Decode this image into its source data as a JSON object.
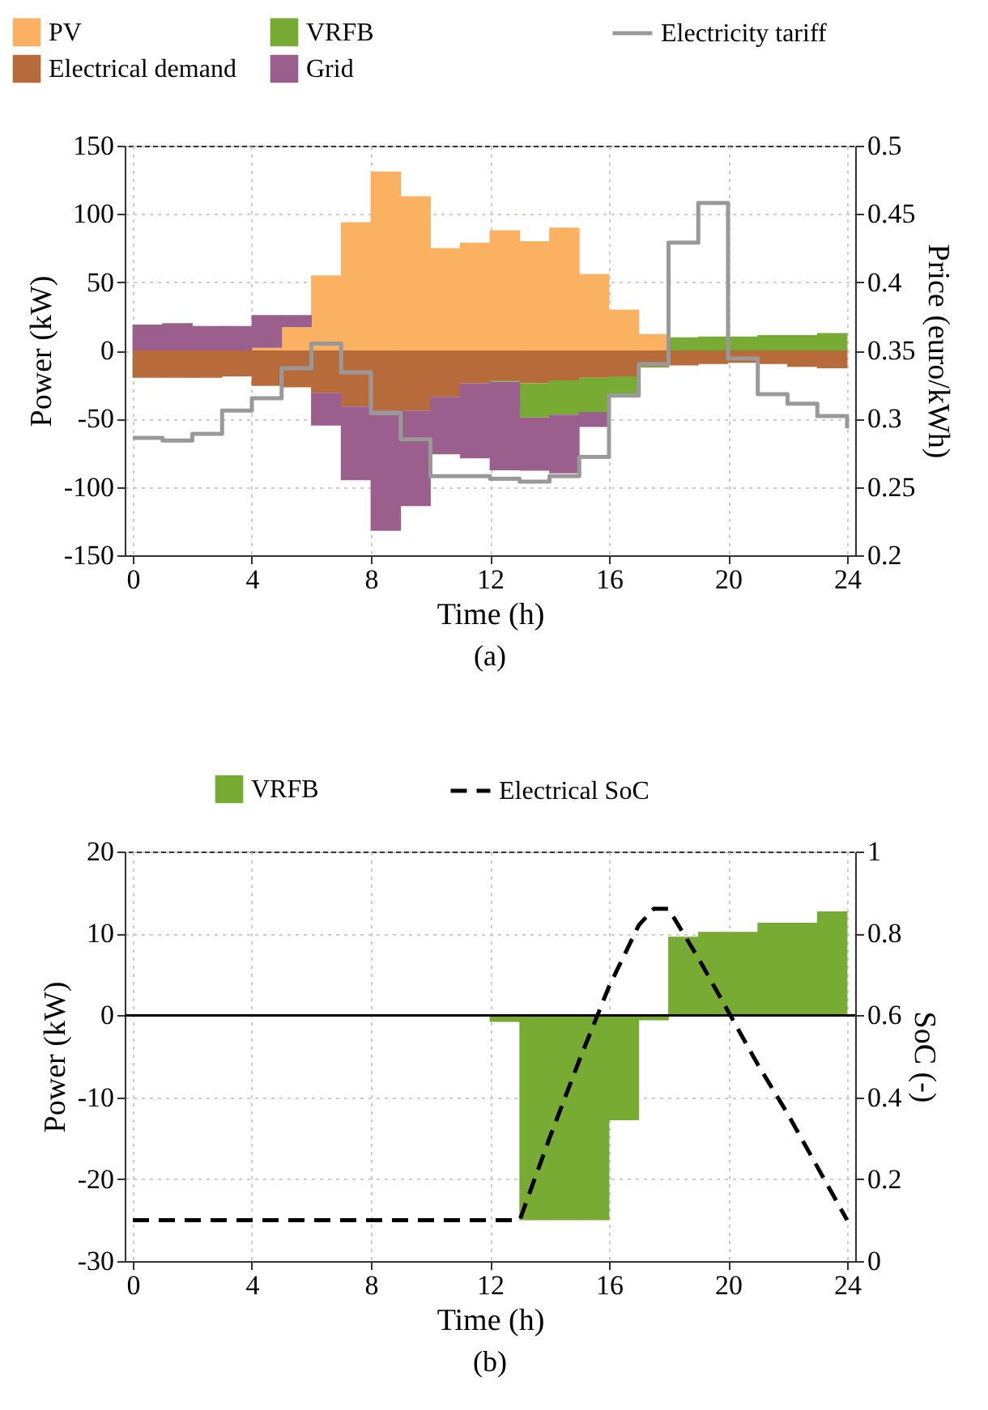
{
  "chart_data": [
    {
      "type": "bar",
      "stacked": true,
      "x": [
        0.5,
        1.5,
        2.5,
        3.5,
        4.5,
        5.5,
        6.5,
        7.5,
        8.5,
        9.5,
        10.5,
        11.5,
        12.5,
        13.5,
        14.5,
        15.5,
        16.5,
        17.5,
        18.5,
        19.5,
        20.5,
        21.5,
        22.5,
        23.5
      ],
      "series": [
        {
          "name": "PV",
          "color": "#fbb162",
          "values": [
            0,
            0,
            0,
            0,
            2,
            17,
            55,
            94,
            131,
            113,
            75,
            79,
            88,
            80,
            90,
            56,
            30,
            12,
            0,
            0,
            0,
            0,
            0,
            0
          ]
        },
        {
          "name": "Electrical demand",
          "color": "#b86b3a",
          "values": [
            -20,
            -20,
            -20,
            -19,
            -26,
            -27,
            -31,
            -41,
            -44,
            -44,
            -34,
            -24,
            -22,
            -24,
            -22,
            -20,
            -19,
            -12,
            -11,
            -10,
            -9,
            -10,
            -12,
            -13
          ]
        },
        {
          "name": "VRFB",
          "color": "#78ab33",
          "values": [
            0,
            0,
            0,
            0,
            0,
            0,
            0,
            0,
            0,
            0,
            0,
            0,
            -0.8,
            -25,
            -25,
            -25,
            -12.8,
            -0.6,
            9.6,
            10.2,
            10.2,
            11.3,
            11.3,
            12.7
          ]
        },
        {
          "name": "Grid",
          "color": "#9b5f8d",
          "values": [
            19,
            20,
            18,
            18,
            24,
            9,
            -24,
            -54,
            -88,
            -70,
            -42,
            -55,
            -65,
            -39,
            -43,
            -11,
            0,
            0,
            0,
            0,
            0,
            0,
            0,
            0
          ]
        },
        {
          "name": "Electricity tariff",
          "type": "step",
          "axis": "y2",
          "color": "#999999",
          "x": [
            0,
            1,
            2,
            3,
            4,
            5,
            6,
            7,
            8,
            9,
            10,
            11,
            12,
            13,
            14,
            15,
            16,
            17,
            18,
            19,
            20,
            21,
            22,
            23,
            24
          ],
          "values": [
            0.286,
            0.284,
            0.289,
            0.306,
            0.315,
            0.337,
            0.355,
            0.334,
            0.304,
            0.285,
            0.258,
            0.258,
            0.256,
            0.254,
            0.258,
            0.272,
            0.317,
            0.34,
            0.429,
            0.458,
            0.344,
            0.318,
            0.311,
            0.302,
            0.293
          ]
        }
      ],
      "xlim": [
        0,
        24
      ],
      "xticks": [
        0,
        4,
        8,
        12,
        16,
        20,
        24
      ],
      "ylim": [
        -150,
        150
      ],
      "yticks": [
        -150,
        -100,
        -50,
        0,
        50,
        100,
        150
      ],
      "y2lim": [
        0.2,
        0.5
      ],
      "y2ticks": [
        {
          "value": 0.2,
          "label": "0.2"
        },
        0.25,
        {
          "value": 0.3,
          "label": "0.3"
        },
        0.35,
        {
          "value": 0.4,
          "label": "0.4"
        },
        0.45,
        {
          "value": 0.5,
          "label": "0.5"
        }
      ],
      "xlabel": "Time (h)",
      "ylabel": "Power (kW)",
      "y2label": "Price (euro/kWh)",
      "legend": "top",
      "grid": true,
      "annotations": [
        "(a)"
      ]
    },
    {
      "type": "bar",
      "stacked": true,
      "x": [
        0.5,
        1.5,
        2.5,
        3.5,
        4.5,
        5.5,
        6.5,
        7.5,
        8.5,
        9.5,
        10.5,
        11.5,
        12.5,
        13.5,
        14.5,
        15.5,
        16.5,
        17.5,
        18.5,
        19.5,
        20.5,
        21.5,
        22.5,
        23.5
      ],
      "series": [
        {
          "name": "VRFB",
          "color": "#78ab33",
          "values": [
            0,
            0,
            0,
            0,
            0,
            0,
            0,
            0,
            0,
            0,
            0,
            0,
            -0.8,
            -25,
            -25,
            -25,
            -12.8,
            -0.6,
            9.6,
            10.2,
            10.2,
            11.3,
            11.3,
            12.7
          ]
        },
        {
          "name": "Electrical SoC",
          "type": "line",
          "axis": "y2",
          "color": "#000000",
          "line_style": "dashed",
          "x": [
            0,
            13,
            14,
            15,
            16,
            17,
            17.5,
            18,
            19,
            20,
            21,
            22,
            23,
            24
          ],
          "values": [
            0.1,
            0.1,
            0.3,
            0.49,
            0.67,
            0.82,
            0.86,
            0.86,
            0.74,
            0.61,
            0.48,
            0.36,
            0.23,
            0.1
          ]
        }
      ],
      "xlim": [
        0,
        24
      ],
      "xticks": [
        0,
        4,
        8,
        12,
        16,
        20,
        24
      ],
      "ylim": [
        -30,
        20
      ],
      "yticks": [
        -30,
        -20,
        -10,
        0,
        10,
        20
      ],
      "y2lim": [
        0,
        1
      ],
      "y2ticks": [
        {
          "value": 0,
          "label": "0"
        },
        0.2,
        0.4,
        0.6,
        0.8,
        {
          "value": 1,
          "label": "1"
        }
      ],
      "ref_lines": [
        {
          "axis": "y",
          "value": 0,
          "color": "#000000"
        }
      ],
      "xlabel": "Time (h)",
      "ylabel": "Power (kW)",
      "y2label": "SoC (-)",
      "legend": "top",
      "grid": true,
      "annotations": [
        "(b)"
      ]
    }
  ]
}
